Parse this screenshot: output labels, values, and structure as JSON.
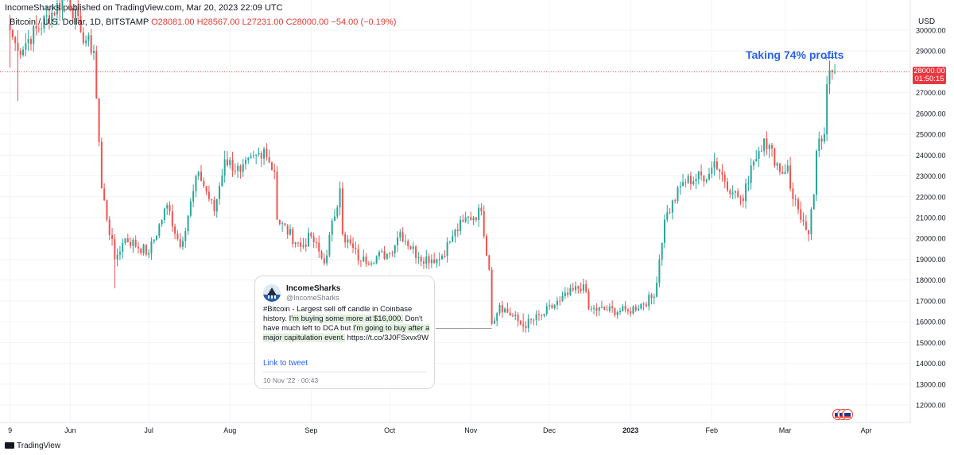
{
  "header": {
    "published_by": "IncomeSharks published on TradingView.com, Mar 20, 2023 22:09 UTC",
    "symbol": "Bitcoin / U.S. Dollar, 1D, BITSTAMP",
    "open": "O28081.00",
    "high": "H28567.00",
    "low": "L27231.00",
    "close": "C28000.00",
    "change": "−54.00 (−0.19%)"
  },
  "price_axis": {
    "currency": "USD",
    "current_price": "28000.00",
    "countdown": "01:50:15"
  },
  "annotation": {
    "text": "Taking 74% profits",
    "arrow": "←"
  },
  "tweet": {
    "name": "IncomeSharks",
    "handle": "@IncomeSharks",
    "text_part1": "#Bitcoin - Largest sell off candle in Coinbase history. ",
    "text_highlight1": "I'm buying some more at $16,000.",
    "text_part2": " Don't have much left to DCA but ",
    "text_highlight2": "I'm going to buy after a major capitulation event.",
    "text_part3": " https://t.co/3J0FSxvx9W",
    "link_text": "Link to tweet",
    "date": "10 Nov '22 · 00:43"
  },
  "footer": {
    "brand": "TradingView"
  },
  "colors": {
    "up": "#26a69a",
    "down": "#ef5350",
    "annotation": "#2a62e8",
    "price_line": "#e53935"
  },
  "chart_data": {
    "type": "candlestick",
    "y_ticks": [
      12000,
      13000,
      14000,
      15000,
      16000,
      17000,
      18000,
      19000,
      20000,
      21000,
      22000,
      23000,
      24000,
      25000,
      26000,
      27000,
      28000,
      29000,
      30000
    ],
    "ylim": [
      11500,
      30200
    ],
    "x_tick_labels": [
      "9",
      "Jun",
      "Jul",
      "Aug",
      "Sep",
      "Oct",
      "Nov",
      "Dec",
      "2023",
      "Feb",
      "Mar",
      "Apr"
    ],
    "x_tick_dates": [
      "2022-05-09",
      "2022-06-01",
      "2022-07-01",
      "2022-08-01",
      "2022-09-01",
      "2022-10-01",
      "2022-11-01",
      "2022-12-01",
      "2023-01-01",
      "2023-02-01",
      "2023-03-01",
      "2023-04-01"
    ],
    "grid": true,
    "current_price": 28000,
    "key_points": [
      {
        "date": "2022-05-09",
        "price": 30000
      },
      {
        "date": "2022-05-12",
        "price": 29000
      },
      {
        "date": "2022-05-31",
        "price": 31700
      },
      {
        "date": "2022-06-05",
        "price": 29900
      },
      {
        "date": "2022-06-10",
        "price": 29000
      },
      {
        "date": "2022-06-13",
        "price": 22400
      },
      {
        "date": "2022-06-18",
        "price": 19000
      },
      {
        "date": "2022-06-22",
        "price": 20000
      },
      {
        "date": "2022-07-01",
        "price": 19300
      },
      {
        "date": "2022-07-08",
        "price": 21600
      },
      {
        "date": "2022-07-13",
        "price": 19600
      },
      {
        "date": "2022-07-20",
        "price": 23200
      },
      {
        "date": "2022-07-26",
        "price": 21300
      },
      {
        "date": "2022-07-30",
        "price": 23800
      },
      {
        "date": "2022-08-05",
        "price": 23200
      },
      {
        "date": "2022-08-14",
        "price": 24300
      },
      {
        "date": "2022-08-18",
        "price": 23200
      },
      {
        "date": "2022-08-19",
        "price": 20900
      },
      {
        "date": "2022-08-28",
        "price": 19600
      },
      {
        "date": "2022-09-01",
        "price": 20100
      },
      {
        "date": "2022-09-06",
        "price": 18800
      },
      {
        "date": "2022-09-12",
        "price": 22400
      },
      {
        "date": "2022-09-13",
        "price": 20200
      },
      {
        "date": "2022-09-20",
        "price": 18900
      },
      {
        "date": "2022-10-01",
        "price": 19300
      },
      {
        "date": "2022-10-05",
        "price": 20300
      },
      {
        "date": "2022-10-12",
        "price": 19100
      },
      {
        "date": "2022-10-20",
        "price": 19000
      },
      {
        "date": "2022-10-25",
        "price": 20100
      },
      {
        "date": "2022-10-29",
        "price": 20800
      },
      {
        "date": "2022-11-05",
        "price": 21300
      },
      {
        "date": "2022-11-08",
        "price": 18500
      },
      {
        "date": "2022-11-09",
        "price": 15900
      },
      {
        "date": "2022-11-12",
        "price": 16800
      },
      {
        "date": "2022-11-21",
        "price": 15800
      },
      {
        "date": "2022-11-28",
        "price": 16300
      },
      {
        "date": "2022-12-05",
        "price": 17000
      },
      {
        "date": "2022-12-14",
        "price": 17800
      },
      {
        "date": "2022-12-16",
        "price": 16600
      },
      {
        "date": "2022-12-31",
        "price": 16500
      },
      {
        "date": "2023-01-10",
        "price": 17200
      },
      {
        "date": "2023-01-14",
        "price": 20900
      },
      {
        "date": "2023-01-21",
        "price": 22700
      },
      {
        "date": "2023-01-31",
        "price": 23100
      },
      {
        "date": "2023-02-02",
        "price": 23700
      },
      {
        "date": "2023-02-09",
        "price": 22200
      },
      {
        "date": "2023-02-13",
        "price": 21800
      },
      {
        "date": "2023-02-16",
        "price": 23500
      },
      {
        "date": "2023-02-21",
        "price": 24800
      },
      {
        "date": "2023-02-28",
        "price": 23100
      },
      {
        "date": "2023-03-02",
        "price": 23500
      },
      {
        "date": "2023-03-03",
        "price": 22400
      },
      {
        "date": "2023-03-09",
        "price": 20400
      },
      {
        "date": "2023-03-10",
        "price": 20200
      },
      {
        "date": "2023-03-12",
        "price": 22100
      },
      {
        "date": "2023-03-13",
        "price": 24200
      },
      {
        "date": "2023-03-16",
        "price": 25000
      },
      {
        "date": "2023-03-17",
        "price": 27400
      },
      {
        "date": "2023-03-19",
        "price": 28000
      },
      {
        "date": "2023-03-20",
        "price": 28000
      }
    ]
  }
}
